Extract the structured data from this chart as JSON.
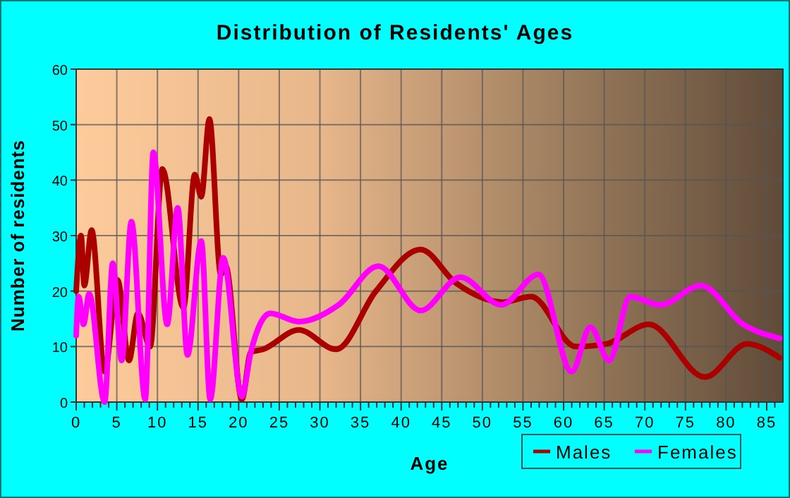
{
  "chart_data": {
    "type": "line",
    "title": "Distribution of Residents' Ages",
    "xlabel": "Age",
    "ylabel": "Number of residents",
    "xlim": [
      0,
      87
    ],
    "ylim": [
      0,
      60
    ],
    "xticks": [
      0,
      5,
      10,
      15,
      20,
      25,
      30,
      35,
      40,
      45,
      50,
      55,
      60,
      65,
      70,
      75,
      80,
      85,
      {
        "value": 1,
        "label": null
      },
      {
        "value": 2,
        "label": null
      },
      {
        "value": 3,
        "label": null
      },
      {
        "value": 4,
        "label": null
      },
      {
        "value": 6,
        "label": null
      },
      {
        "value": 7,
        "label": null
      },
      {
        "value": 8,
        "label": null
      },
      {
        "value": 9,
        "label": null
      },
      {
        "value": 11,
        "label": null
      },
      {
        "value": 12,
        "label": null
      },
      {
        "value": 13,
        "label": null
      },
      {
        "value": 14,
        "label": null
      },
      {
        "value": 16,
        "label": null
      },
      {
        "value": 17,
        "label": null
      },
      {
        "value": 18,
        "label": null
      },
      {
        "value": 19,
        "label": null
      },
      {
        "value": 21,
        "label": null
      },
      {
        "value": 22,
        "label": null
      },
      {
        "value": 23,
        "label": null
      },
      {
        "value": 24,
        "label": null
      },
      {
        "value": 26,
        "label": null
      },
      {
        "value": 27,
        "label": null
      },
      {
        "value": 28,
        "label": null
      },
      {
        "value": 29,
        "label": null
      },
      {
        "value": 31,
        "label": null
      },
      {
        "value": 32,
        "label": null
      },
      {
        "value": 33,
        "label": null
      },
      {
        "value": 34,
        "label": null
      },
      {
        "value": 36,
        "label": null
      },
      {
        "value": 37,
        "label": null
      },
      {
        "value": 38,
        "label": null
      },
      {
        "value": 39,
        "label": null
      },
      {
        "value": 41,
        "label": null
      },
      {
        "value": 42,
        "label": null
      },
      {
        "value": 43,
        "label": null
      },
      {
        "value": 44,
        "label": null
      },
      {
        "value": 46,
        "label": null
      },
      {
        "value": 47,
        "label": null
      },
      {
        "value": 48,
        "label": null
      },
      {
        "value": 49,
        "label": null
      },
      {
        "value": 51,
        "label": null
      },
      {
        "value": 52,
        "label": null
      },
      {
        "value": 53,
        "label": null
      },
      {
        "value": 54,
        "label": null
      },
      {
        "value": 56,
        "label": null
      },
      {
        "value": 57,
        "label": null
      },
      {
        "value": 58,
        "label": null
      },
      {
        "value": 59,
        "label": null
      },
      {
        "value": 61,
        "label": null
      },
      {
        "value": 62,
        "label": null
      },
      {
        "value": 63,
        "label": null
      },
      {
        "value": 64,
        "label": null
      },
      {
        "value": 66,
        "label": null
      },
      {
        "value": 67,
        "label": null
      },
      {
        "value": 68,
        "label": null
      },
      {
        "value": 69,
        "label": null
      },
      {
        "value": 71,
        "label": null
      },
      {
        "value": 72,
        "label": null
      },
      {
        "value": 73,
        "label": null
      },
      {
        "value": 74,
        "label": null
      },
      {
        "value": 76,
        "label": null
      },
      {
        "value": 77,
        "label": null
      },
      {
        "value": 78,
        "label": null
      },
      {
        "value": 79,
        "label": null
      },
      {
        "value": 81,
        "label": null
      },
      {
        "value": 82,
        "label": null
      },
      {
        "value": 83,
        "label": null
      },
      {
        "value": 84,
        "label": null
      },
      {
        "value": 86,
        "label": null
      }
    ],
    "yticks": [
      0,
      10,
      20,
      30,
      40,
      50,
      60
    ],
    "grid": true,
    "legend": "bottom right",
    "marker": "none",
    "line_style": "solid",
    "series": [
      {
        "name": "Males",
        "color": "#aa0000",
        "x": [
          0,
          0.6,
          1,
          1.9,
          3.5,
          5.1,
          6.5,
          7.6,
          9.1,
          10.6,
          13.2,
          14.6,
          15.4,
          16.4,
          17.8,
          18.4,
          20.4,
          21.5,
          23,
          27.4,
          32,
          36.9,
          42.4,
          46.7,
          52.5,
          56,
          61.5,
          65.3,
          70.5,
          77.4,
          82.6,
          86.6
        ],
        "values": [
          20,
          30,
          21,
          31,
          5.5,
          22,
          7.5,
          16,
          10,
          42,
          17,
          41,
          37,
          51,
          23,
          24.5,
          0.5,
          9,
          9.5,
          13,
          9.5,
          20,
          27.5,
          21.5,
          18,
          19,
          10,
          10.5,
          14,
          4.5,
          10.5,
          8
        ]
      },
      {
        "name": "Females",
        "color": "#ff00ff",
        "x": [
          0,
          0.3,
          0.9,
          1.6,
          3.5,
          4.5,
          5.6,
          6.8,
          8.5,
          9.5,
          11.2,
          12.5,
          13.7,
          15.4,
          16.5,
          18.1,
          20.4,
          21.5,
          23.9,
          27.4,
          32.3,
          37.2,
          42.4,
          47.3,
          52.3,
          56.9,
          61,
          63.3,
          65.6,
          68.2,
          71.9,
          76.9,
          82.1,
          86.6
        ],
        "values": [
          12,
          19,
          14,
          19.5,
          0,
          25,
          7.5,
          32.5,
          0.5,
          45,
          14,
          35,
          8.5,
          29,
          0.5,
          26,
          1,
          9,
          16,
          14.5,
          17.5,
          24.5,
          16.5,
          22.5,
          17.5,
          23,
          5.5,
          13.5,
          7.5,
          19,
          17.5,
          21,
          14,
          11.5
        ]
      }
    ]
  }
}
